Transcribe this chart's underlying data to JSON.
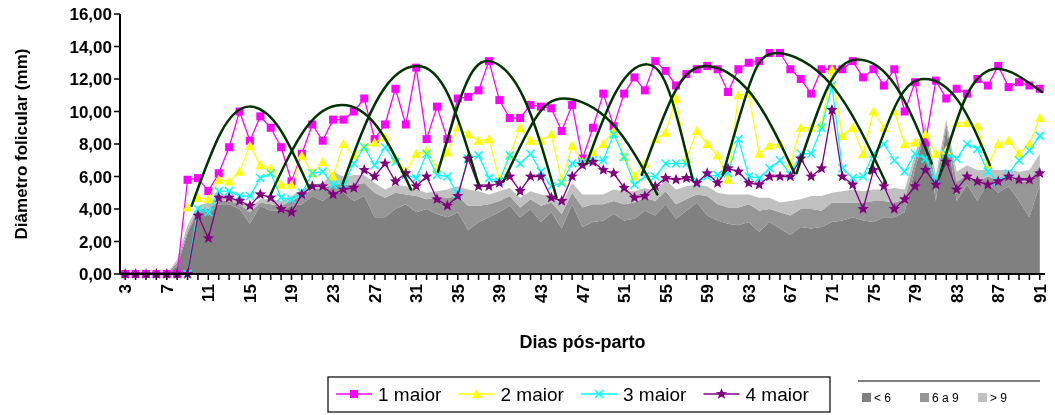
{
  "chart_data": {
    "type": "line",
    "xlabel": "Dias pós-parto",
    "ylabel": "Diâmetro folicular (mm)",
    "x": [
      3,
      4,
      5,
      6,
      7,
      8,
      9,
      10,
      11,
      12,
      13,
      14,
      15,
      16,
      17,
      18,
      19,
      20,
      21,
      22,
      23,
      24,
      25,
      26,
      27,
      28,
      29,
      30,
      31,
      32,
      33,
      34,
      35,
      36,
      37,
      38,
      39,
      40,
      41,
      42,
      43,
      44,
      45,
      46,
      47,
      48,
      49,
      50,
      51,
      52,
      53,
      54,
      55,
      56,
      57,
      58,
      59,
      60,
      61,
      62,
      63,
      64,
      65,
      66,
      67,
      68,
      69,
      70,
      71,
      72,
      73,
      74,
      75,
      76,
      77,
      78,
      79,
      80,
      81,
      82,
      83,
      84,
      85,
      86,
      87,
      88,
      89,
      90,
      91
    ],
    "xlim": [
      2.5,
      91.5
    ],
    "xticks": [
      3,
      {
        "value": 4,
        "label": null
      },
      {
        "value": 5,
        "label": null
      },
      {
        "value": 6,
        "label": null
      },
      7,
      {
        "value": 8,
        "label": null
      },
      {
        "value": 9,
        "label": null
      },
      {
        "value": 10,
        "label": null
      },
      11,
      {
        "value": 12,
        "label": null
      },
      {
        "value": 13,
        "label": null
      },
      {
        "value": 14,
        "label": null
      },
      15,
      {
        "value": 16,
        "label": null
      },
      {
        "value": 17,
        "label": null
      },
      {
        "value": 18,
        "label": null
      },
      19,
      {
        "value": 20,
        "label": null
      },
      {
        "value": 21,
        "label": null
      },
      {
        "value": 22,
        "label": null
      },
      23,
      {
        "value": 24,
        "label": null
      },
      {
        "value": 25,
        "label": null
      },
      {
        "value": 26,
        "label": null
      },
      27,
      {
        "value": 28,
        "label": null
      },
      {
        "value": 29,
        "label": null
      },
      {
        "value": 30,
        "label": null
      },
      31,
      {
        "value": 32,
        "label": null
      },
      {
        "value": 33,
        "label": null
      },
      {
        "value": 34,
        "label": null
      },
      35,
      {
        "value": 36,
        "label": null
      },
      {
        "value": 37,
        "label": null
      },
      {
        "value": 38,
        "label": null
      },
      39,
      {
        "value": 40,
        "label": null
      },
      {
        "value": 41,
        "label": null
      },
      {
        "value": 42,
        "label": null
      },
      43,
      {
        "value": 44,
        "label": null
      },
      {
        "value": 45,
        "label": null
      },
      {
        "value": 46,
        "label": null
      },
      47,
      {
        "value": 48,
        "label": null
      },
      {
        "value": 49,
        "label": null
      },
      {
        "value": 50,
        "label": null
      },
      51,
      {
        "value": 52,
        "label": null
      },
      {
        "value": 53,
        "label": null
      },
      {
        "value": 54,
        "label": null
      },
      55,
      {
        "value": 56,
        "label": null
      },
      {
        "value": 57,
        "label": null
      },
      {
        "value": 58,
        "label": null
      },
      59,
      {
        "value": 60,
        "label": null
      },
      {
        "value": 61,
        "label": null
      },
      {
        "value": 62,
        "label": null
      },
      63,
      {
        "value": 64,
        "label": null
      },
      {
        "value": 65,
        "label": null
      },
      {
        "value": 66,
        "label": null
      },
      67,
      {
        "value": 68,
        "label": null
      },
      {
        "value": 69,
        "label": null
      },
      {
        "value": 70,
        "label": null
      },
      71,
      {
        "value": 72,
        "label": null
      },
      {
        "value": 73,
        "label": null
      },
      {
        "value": 74,
        "label": null
      },
      75,
      {
        "value": 76,
        "label": null
      },
      {
        "value": 77,
        "label": null
      },
      {
        "value": 78,
        "label": null
      },
      79,
      {
        "value": 80,
        "label": null
      },
      {
        "value": 81,
        "label": null
      },
      {
        "value": 82,
        "label": null
      },
      83,
      {
        "value": 84,
        "label": null
      },
      {
        "value": 85,
        "label": null
      },
      {
        "value": 86,
        "label": null
      },
      87,
      {
        "value": 88,
        "label": null
      },
      {
        "value": 89,
        "label": null
      },
      {
        "value": 90,
        "label": null
      },
      91
    ],
    "ylim": [
      0,
      16
    ],
    "yticks": [
      {
        "value": 0,
        "label": "0,00"
      },
      {
        "value": 2,
        "label": "2,00"
      },
      {
        "value": 4,
        "label": "4,00"
      },
      {
        "value": 6,
        "label": "6,00"
      },
      {
        "value": 8,
        "label": "8,00"
      },
      {
        "value": 10,
        "label": "10,00"
      },
      {
        "value": 12,
        "label": "12,00"
      },
      {
        "value": 14,
        "label": "14,00"
      },
      {
        "value": 16,
        "label": "16,00"
      }
    ],
    "stacked": true,
    "legend": "bottom",
    "series": [
      {
        "name": "< 6",
        "type": "area",
        "color": "#808080",
        "values": [
          0,
          0,
          0,
          0,
          0,
          0.5,
          2.5,
          3.9,
          3.6,
          4.3,
          4.3,
          4.0,
          3.1,
          4.2,
          3.9,
          3.9,
          4.2,
          4.3,
          4.8,
          4.5,
          5.0,
          5.0,
          4.5,
          4.8,
          3.5,
          3.5,
          4.0,
          4.3,
          3.8,
          4.0,
          3.7,
          3.5,
          3.8,
          2.7,
          3.2,
          3.5,
          3.8,
          4.2,
          3.5,
          4.0,
          3.2,
          3.8,
          2.8,
          4.3,
          2.9,
          3.2,
          3.3,
          3.7,
          3.3,
          3.4,
          3.9,
          3.6,
          4.3,
          3.4,
          3.9,
          4.4,
          3.6,
          3.3,
          3.1,
          3.0,
          3.2,
          2.6,
          3.2,
          2.8,
          2.4,
          2.9,
          2.8,
          2.9,
          3.2,
          3.3,
          3.5,
          3.3,
          3.2,
          3.5,
          3.5,
          3.8,
          6.5,
          8.8,
          4.5,
          9.0,
          4.5,
          5.5,
          4.5,
          5.6,
          5.0,
          5.4,
          4.5,
          3.5,
          5.5
        ]
      },
      {
        "name": "6 a 9",
        "type": "area",
        "color": "#969696",
        "values": [
          0,
          0,
          0,
          0,
          0,
          0.2,
          0.2,
          0.1,
          0.4,
          0.2,
          0.2,
          0.3,
          0.7,
          0.2,
          0.4,
          0.3,
          0.3,
          0.5,
          0.4,
          0.8,
          0.5,
          0.5,
          1.0,
          0.8,
          1.5,
          1.2,
          1.0,
          0.6,
          1.0,
          0.6,
          1.0,
          1.2,
          1.0,
          1.5,
          1.0,
          0.8,
          0.7,
          0.6,
          0.6,
          0.6,
          1.0,
          0.6,
          0.9,
          0.7,
          1.2,
          1.1,
          1.0,
          0.8,
          1.0,
          1.0,
          0.8,
          0.9,
          0.8,
          0.9,
          0.7,
          0.5,
          1.2,
          1.0,
          1.0,
          1.1,
          1.1,
          1.3,
          0.8,
          1.0,
          1.2,
          1.1,
          1.2,
          1.0,
          1.2,
          1.1,
          0.9,
          1.1,
          1.3,
          1.0,
          0.9,
          0.8,
          0.5,
          0.3,
          1.0,
          0.3,
          1.2,
          0.6,
          1.2,
          0.4,
          0.8,
          0.6,
          1.2,
          2.2,
          1.2
        ]
      },
      {
        "name": "> 9",
        "type": "area",
        "color": "#c0c0c0",
        "values": [
          0,
          0,
          0,
          0,
          0,
          0.2,
          0.3,
          0.2,
          0.4,
          0.2,
          0.2,
          0.2,
          0.3,
          0.2,
          0.3,
          0.3,
          0.3,
          0.4,
          0.3,
          0.3,
          0.8,
          0.5,
          0.6,
          0.5,
          0.6,
          0.5,
          0.5,
          0.5,
          0.4,
          0.4,
          0.4,
          0.5,
          0.6,
          1.0,
          0.9,
          0.6,
          0.6,
          0.5,
          0.6,
          0.5,
          0.7,
          0.4,
          0.6,
          0.6,
          0.8,
          0.6,
          0.6,
          0.7,
          0.8,
          0.7,
          0.6,
          0.6,
          0.7,
          0.9,
          0.8,
          0.6,
          0.6,
          0.7,
          0.8,
          0.8,
          0.6,
          0.8,
          0.7,
          0.6,
          0.9,
          0.6,
          0.8,
          0.9,
          0.6,
          0.7,
          0.8,
          0.7,
          0.7,
          0.7,
          0.9,
          0.6,
          0.4,
          0.2,
          0.6,
          0.2,
          0.6,
          0.6,
          0.7,
          0.4,
          0.6,
          0.4,
          0.6,
          0.7,
          0.7
        ]
      },
      {
        "name": "1 maior",
        "marker": "square",
        "color": "#ff00ff",
        "values": [
          0,
          0,
          0,
          0,
          0,
          0,
          5.8,
          5.9,
          5.1,
          6.2,
          7.8,
          10.0,
          8.2,
          9.7,
          9.0,
          7.8,
          5.7,
          7.4,
          9.2,
          8.2,
          9.5,
          9.5,
          10.0,
          10.8,
          8.3,
          9.2,
          11.4,
          9.2,
          12.7,
          8.3,
          10.3,
          8.3,
          10.8,
          10.9,
          11.3,
          13.1,
          10.7,
          9.6,
          9.6,
          10.4,
          10.3,
          10.2,
          8.8,
          10.4,
          7.1,
          9.0,
          11.1,
          9.1,
          11.1,
          12.1,
          11.3,
          13.1,
          12.5,
          11.6,
          12.3,
          12.6,
          12.8,
          12.6,
          11.2,
          12.6,
          13.0,
          13.1,
          13.6,
          13.6,
          12.6,
          12.0,
          11.1,
          12.6,
          12.6,
          12.6,
          13.1,
          12.1,
          12.6,
          11.6,
          12.6,
          10.0,
          11.8,
          8.1,
          11.9,
          10.8,
          11.4,
          11.1,
          12.0,
          11.6,
          12.8,
          11.5,
          11.8,
          11.6,
          11.4
        ]
      },
      {
        "name": "2 maior",
        "marker": "triangle",
        "color": "#ffff00",
        "values": [
          null,
          null,
          null,
          null,
          null,
          null,
          4.1,
          4.7,
          4.6,
          5.8,
          5.7,
          6.3,
          7.9,
          6.7,
          6.5,
          5.5,
          5.5,
          7.3,
          6.2,
          6.9,
          6.0,
          8.0,
          7.3,
          7.8,
          8.1,
          8.4,
          7.1,
          6.3,
          7.4,
          7.6,
          6.5,
          7.5,
          9.0,
          8.6,
          8.2,
          8.3,
          5.8,
          7.3,
          9.0,
          8.2,
          8.2,
          8.6,
          5.7,
          7.9,
          6.9,
          7.5,
          8.0,
          8.8,
          7.2,
          6.0,
          6.8,
          8.3,
          8.7,
          10.8,
          7.1,
          8.8,
          8.0,
          7.3,
          5.8,
          11.0,
          11.1,
          7.4,
          7.9,
          8.0,
          6.8,
          9.0,
          9.0,
          9.2,
          12.6,
          8.5,
          9.0,
          7.4,
          10.0,
          9.0,
          10.0,
          8.0,
          8.1,
          8.6,
          7.4,
          7.6,
          9.3,
          9.3,
          9.1,
          6.7,
          8.0,
          8.2,
          7.4,
          8.0,
          9.6
        ]
      },
      {
        "name": "3 maior",
        "marker": "cross",
        "color": "#00ffff",
        "values": [
          null,
          null,
          null,
          null,
          null,
          null,
          0,
          4.0,
          3.8,
          5.1,
          5.1,
          4.8,
          4.8,
          5.9,
          6.2,
          4.7,
          4.6,
          5.0,
          6.2,
          6.3,
          5.5,
          5.5,
          6.8,
          7.8,
          6.7,
          7.8,
          6.9,
          6.1,
          5.9,
          7.4,
          6.1,
          6.0,
          4.9,
          7.1,
          7.3,
          5.9,
          5.7,
          7.3,
          6.8,
          7.4,
          6.3,
          5.4,
          5.6,
          6.8,
          6.9,
          7.0,
          7.0,
          8.6,
          7.2,
          5.5,
          6.0,
          6.0,
          6.8,
          6.8,
          6.8,
          5.6,
          6.0,
          6.1,
          6.2,
          8.3,
          6.0,
          5.9,
          6.5,
          7.0,
          6.1,
          7.4,
          7.4,
          9.0,
          11.6,
          6.5,
          5.9,
          6.0,
          7.4,
          8.0,
          7.0,
          6.3,
          7.4,
          7.1,
          5.8,
          7.4,
          7.1,
          8.0,
          7.7,
          6.3,
          5.7,
          6.2,
          7.0,
          7.6,
          8.5
        ]
      },
      {
        "name": "4 maior",
        "marker": "star",
        "color": "#800080",
        "values": [
          0,
          0,
          0,
          0,
          0,
          0,
          0,
          3.6,
          2.2,
          4.7,
          4.7,
          4.5,
          4.2,
          4.9,
          4.7,
          4.0,
          3.8,
          4.9,
          5.4,
          5.4,
          4.9,
          5.2,
          5.3,
          6.4,
          6.0,
          6.8,
          5.7,
          6.2,
          5.4,
          6.0,
          4.6,
          4.2,
          4.8,
          7.1,
          5.4,
          5.4,
          5.6,
          6.0,
          5.1,
          6.0,
          6.0,
          4.7,
          4.5,
          6.0,
          6.7,
          6.9,
          6.4,
          6.2,
          5.3,
          4.7,
          4.8,
          5.4,
          5.9,
          5.8,
          5.9,
          5.6,
          6.2,
          5.6,
          6.5,
          6.3,
          5.6,
          5.5,
          6.0,
          6.0,
          6.0,
          7.1,
          6.0,
          6.5,
          10.1,
          6.0,
          5.5,
          4.0,
          6.4,
          5.4,
          4.0,
          4.6,
          5.4,
          6.4,
          5.5,
          6.9,
          5.2,
          6.0,
          5.7,
          5.5,
          5.7,
          6.0,
          5.8,
          5.8,
          6.2
        ]
      },
      {
        "type": "line",
        "marker": "none",
        "color": "#003300",
        "x": [
          9.4,
          12.2,
          14.9,
          17.8,
          20.7
        ],
        "values": [
          4.2,
          8.7,
          10.3,
          9.0,
          5.3
        ]
      },
      {
        "type": "line",
        "marker": "none",
        "color": "#003300",
        "x": [
          17.0,
          20.4,
          23.8,
          27.2,
          30.5
        ],
        "values": [
          4.9,
          9.0,
          10.4,
          9.1,
          5.2
        ]
      },
      {
        "type": "line",
        "marker": "none",
        "color": "#003300",
        "x": [
          23.9,
          27.5,
          31.1,
          34.1,
          37.0
        ],
        "values": [
          5.5,
          11.0,
          12.8,
          11.0,
          5.5
        ]
      },
      {
        "type": "line",
        "marker": "none",
        "color": "#003300",
        "x": [
          33.1,
          35.6,
          38.0,
          41.3,
          44.5
        ],
        "values": [
          6.3,
          11.4,
          13.1,
          10.9,
          4.7
        ]
      },
      {
        "type": "line",
        "marker": "none",
        "color": "#003300",
        "x": [
          39.4,
          42.4,
          45.3,
          49.8,
          54.2
        ],
        "values": [
          5.7,
          9.5,
          10.8,
          9.3,
          4.9
        ]
      },
      {
        "type": "line",
        "marker": "none",
        "color": "#003300",
        "x": [
          47.4,
          50.3,
          53.2,
          55.4,
          57.6
        ],
        "values": [
          6.8,
          11.3,
          12.9,
          11.1,
          5.8
        ]
      },
      {
        "type": "line",
        "marker": "none",
        "color": "#003300",
        "x": [
          52.7,
          55.8,
          58.9,
          63.2,
          67.4
        ],
        "values": [
          6.1,
          11.1,
          12.8,
          11.1,
          6.2
        ]
      },
      {
        "type": "line",
        "marker": "none",
        "color": "#003300",
        "x": [
          60.5,
          63.1,
          65.7,
          71.0,
          76.2
        ],
        "values": [
          6.1,
          11.7,
          13.6,
          11.6,
          5.6
        ]
      },
      {
        "type": "line",
        "marker": "none",
        "color": "#003300",
        "x": [
          67.6,
          70.6,
          73.5,
          77.1,
          80.6
        ],
        "values": [
          6.2,
          11.5,
          13.2,
          11.6,
          6.8
        ]
      },
      {
        "type": "line",
        "marker": "none",
        "color": "#003300",
        "x": [
          74.6,
          77.3,
          79.9,
          83.1,
          86.2
        ],
        "values": [
          6.2,
          10.6,
          12.0,
          10.7,
          6.7
        ]
      },
      {
        "type": "line",
        "marker": "none",
        "color": "#003300",
        "x": [
          81.3,
          83.9,
          86.5,
          88.9,
          91.2
        ],
        "values": [
          5.9,
          10.9,
          12.6,
          12.2,
          11.2
        ]
      }
    ]
  }
}
